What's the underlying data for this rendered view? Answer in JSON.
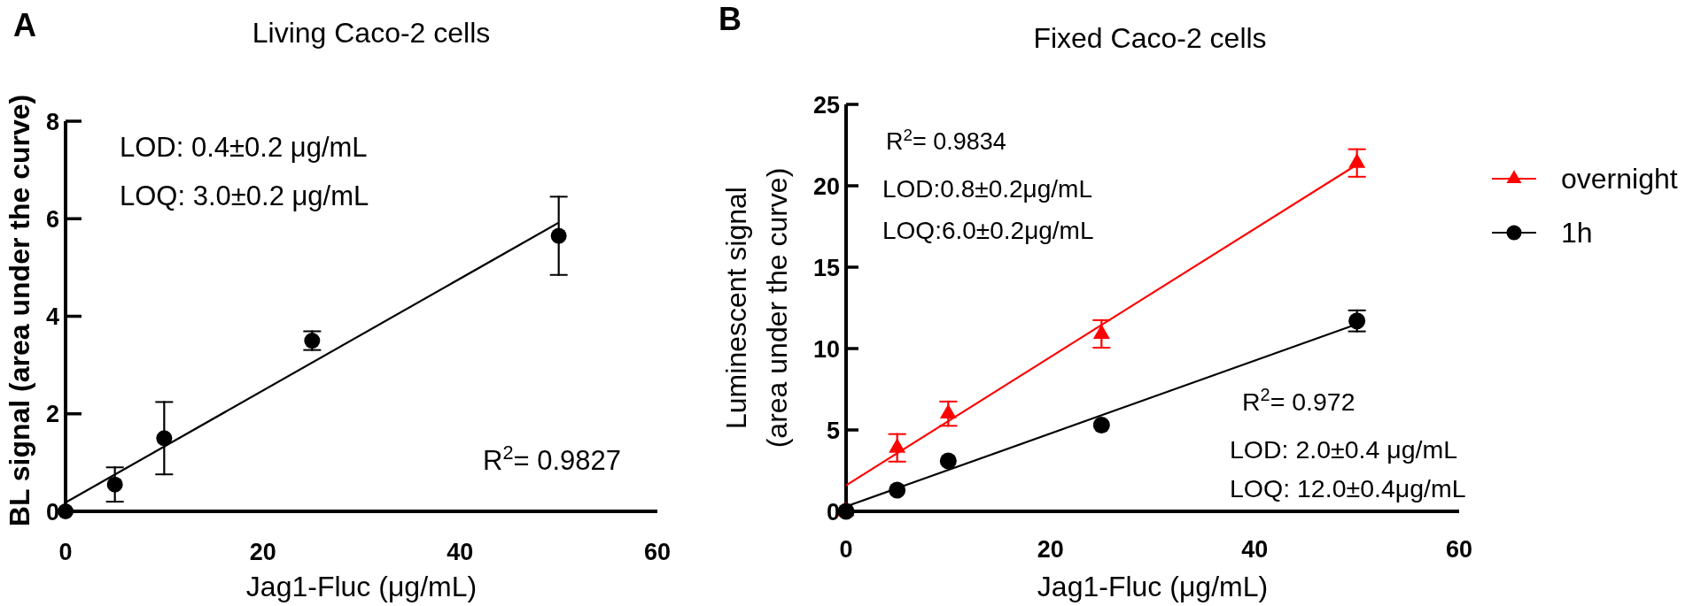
{
  "chart_data": [
    {
      "type": "scatter",
      "title": "Living Caco-2 cells",
      "xlabel": "Jag1-Fluc (μg/mL)",
      "ylabel": "BL signal (area under the curve)",
      "annotations": [
        "A",
        "LOD: 0.4±0.2 μg/mL",
        "LOQ: 3.0±0.2 μg/mL",
        "R$^{2}$= 0.9827"
      ],
      "xlim": [
        0,
        60
      ],
      "xticks": [
        0,
        20,
        40,
        60
      ],
      "ylim": [
        0,
        8
      ],
      "yticks": [
        0,
        2,
        4,
        6,
        8
      ],
      "series": [
        {
          "type": "line",
          "color": "#000000",
          "x": [
            0,
            50
          ],
          "values": [
            0.18,
            5.92
          ]
        },
        {
          "color": "#000000",
          "marker": "circle",
          "x": [
            0,
            5,
            10,
            25,
            50
          ],
          "values": [
            0,
            0.55,
            1.5,
            3.5,
            5.65
          ],
          "errors": [
            null,
            0.37,
            0.76,
            0.21,
            0.82
          ]
        }
      ]
    },
    {
      "type": "scatter",
      "title": "Fixed Caco-2 cells",
      "xlabel": "Jag1-Fluc (μg/mL)",
      "ylabel": "Luminescent signal\n(area under the curve)",
      "annotations": [
        "B",
        "R$^{2}$= 0.9834",
        "LOD:0.8±0.2μg/mL",
        "LOQ:6.0±0.2μg/mL",
        "R$^{2}$= 0.972",
        "LOD: 2.0±0.4 μg/mL",
        "LOQ: 12.0±0.4μg/mL"
      ],
      "xlim": [
        0,
        60
      ],
      "xticks": [
        0,
        20,
        40,
        60
      ],
      "ylim": [
        0,
        25
      ],
      "yticks": [
        0,
        5,
        10,
        15,
        20,
        25
      ],
      "legend": "right",
      "series": [
        {
          "type": "line",
          "color": "#ff0000",
          "x": [
            0,
            50
          ],
          "values": [
            1.6,
            21.3
          ]
        },
        {
          "name": "overnight",
          "color": "#ff0000",
          "marker": "triangle",
          "x": [
            0,
            5,
            10,
            25,
            50
          ],
          "values": [
            0,
            3.9,
            6.0,
            10.9,
            21.4
          ],
          "errors": [
            null,
            0.9,
            0.8,
            0.9,
            0.9
          ]
        },
        {
          "type": "line",
          "color": "#000000",
          "x": [
            0,
            50
          ],
          "values": [
            0.3,
            11.5
          ]
        },
        {
          "name": "1h",
          "color": "#000000",
          "marker": "circle",
          "x": [
            0,
            5,
            10,
            25,
            50
          ],
          "values": [
            0,
            1.3,
            3.1,
            5.3,
            11.7
          ],
          "errors": [
            null,
            null,
            null,
            null,
            0.7
          ]
        }
      ]
    }
  ]
}
